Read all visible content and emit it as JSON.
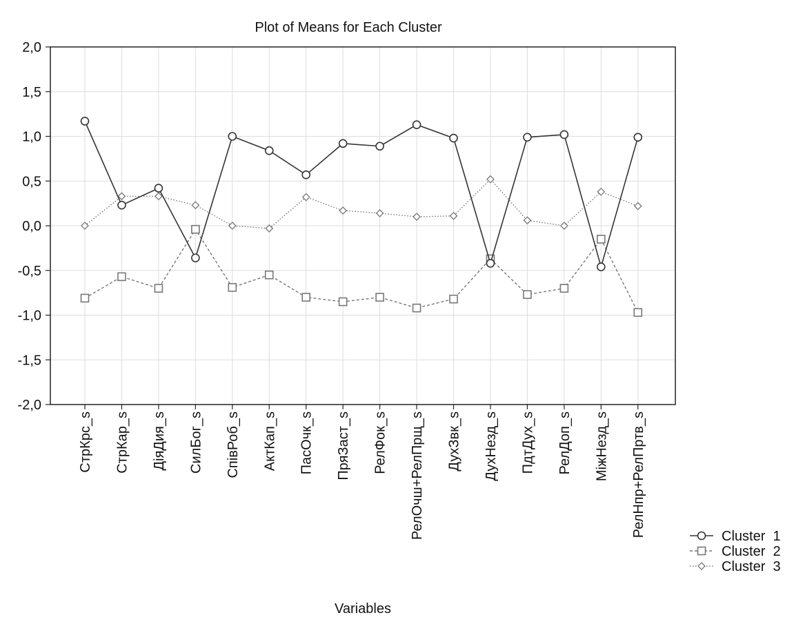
{
  "chart_data": {
    "type": "line",
    "title": "Plot of Means for Each Cluster",
    "xlabel": "Variables",
    "ylabel": "",
    "ylim": [
      -2.0,
      2.0
    ],
    "yticks": [
      "2,0",
      "1,5",
      "1,0",
      "0,5",
      "0,0",
      "-0,5",
      "-1,0",
      "-1,5",
      "-2,0"
    ],
    "grid": true,
    "legend_position": "bottom-right",
    "categories": [
      "СтрКрс_s",
      "СтрКар_s",
      "ДіяДия_s",
      "СилБог_s",
      "СпівРоб_s",
      "АктКап_s",
      "ПасОчк_s",
      "ПряЗаст_s",
      "РелФок_s",
      "РелОчш+РелПрщ_s",
      "ДухЗвк_s",
      "ДухНезд_s",
      "ПдтДух_s",
      "РелДоп_s",
      "МіжНезд_s",
      "РелНпр+РелПртв_s"
    ],
    "series": [
      {
        "name": "Cluster  1",
        "marker": "circle",
        "line_style": "solid",
        "color": "#333333",
        "values": [
          1.17,
          0.23,
          0.42,
          -0.36,
          1.0,
          0.84,
          0.57,
          0.92,
          0.89,
          1.13,
          0.98,
          -0.42,
          0.99,
          1.02,
          -0.46,
          0.99
        ]
      },
      {
        "name": "Cluster  2",
        "marker": "square",
        "line_style": "dashed",
        "color": "#777777",
        "values": [
          -0.81,
          -0.57,
          -0.7,
          -0.04,
          -0.69,
          -0.55,
          -0.8,
          -0.85,
          -0.8,
          -0.92,
          -0.82,
          -0.37,
          -0.77,
          -0.7,
          -0.15,
          -0.97
        ]
      },
      {
        "name": "Cluster  3",
        "marker": "diamond",
        "line_style": "dotted",
        "color": "#777777",
        "values": [
          0.0,
          0.33,
          0.33,
          0.23,
          0.0,
          -0.03,
          0.32,
          0.17,
          0.14,
          0.1,
          0.11,
          0.52,
          0.06,
          0.0,
          0.38,
          0.22
        ]
      }
    ]
  }
}
